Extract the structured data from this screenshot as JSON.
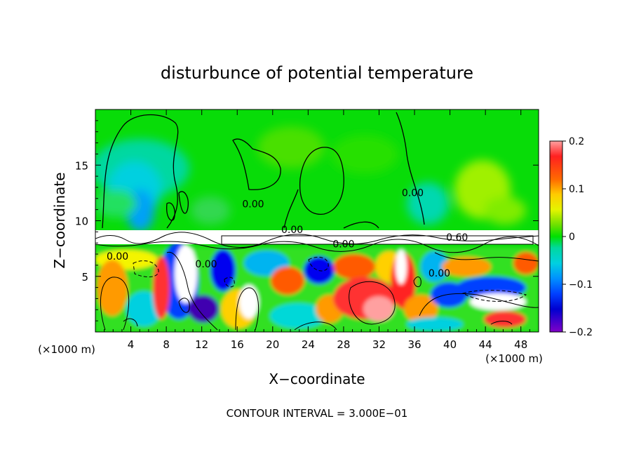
{
  "chart_data": {
    "type": "heatmap",
    "title": "disturbunce of potential temperature",
    "xlabel": "X−coordinate",
    "ylabel": "Z−coordinate",
    "x_unit": "(×1000 m)",
    "x_unit_right": "(×1000 m)",
    "footnote": "CONTOUR INTERVAL = 3.000E−01",
    "xlim": [
      0,
      50
    ],
    "ylim": [
      0,
      20
    ],
    "x_ticks": [
      4,
      8,
      12,
      16,
      20,
      24,
      28,
      32,
      36,
      40,
      44,
      48
    ],
    "x_tick_labels": [
      "4",
      "8",
      "12",
      "16",
      "20",
      "24",
      "28",
      "32",
      "36",
      "40",
      "44",
      "48"
    ],
    "y_ticks": [
      5,
      10,
      15
    ],
    "y_tick_labels": [
      "5",
      "10",
      "15"
    ],
    "colorbar": {
      "range": [
        -0.2,
        0.2
      ],
      "ticks": [
        0.2,
        0.1,
        0,
        -0.1,
        -0.2
      ],
      "tick_labels": [
        "0.2",
        "0.1",
        "0",
        "−0.1",
        "−0.2"
      ],
      "colors": [
        "#ff9c9c",
        "#ff3030",
        "#ff1c1c",
        "#ff5a00",
        "#ff9a00",
        "#ffd000",
        "#f4f400",
        "#b4f000",
        "#70e400",
        "#32d832",
        "#00e000",
        "#00d88c",
        "#00d8d8",
        "#00b4f0",
        "#0080ff",
        "#0040ff",
        "#0000f0",
        "#1010b4",
        "#4000b0",
        "#8000c8"
      ]
    },
    "contour_labels": [
      {
        "text": "0.00",
        "x": 17.8,
        "z": 11.2
      },
      {
        "text": "0.00",
        "x": 22.2,
        "z": 8.9
      },
      {
        "text": "0.00",
        "x": 35.8,
        "z": 12.2
      },
      {
        "text": "0.00",
        "x": 28.0,
        "z": 7.6
      },
      {
        "text": "0.60",
        "x": 40.8,
        "z": 8.2
      },
      {
        "text": "0.00",
        "x": 2.5,
        "z": 6.5
      },
      {
        "text": "0.00",
        "x": 12.5,
        "z": 5.8
      },
      {
        "text": "0.00",
        "x": 38.8,
        "z": 5.0
      }
    ]
  }
}
